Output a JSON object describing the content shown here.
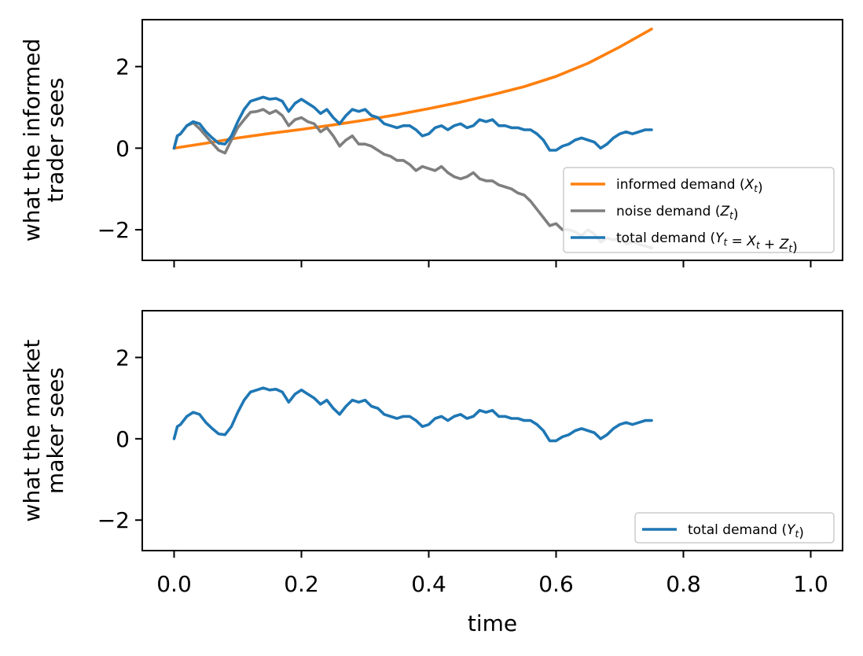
{
  "chart_data": [
    {
      "type": "line",
      "ylabel": [
        "what the informed",
        "trader sees"
      ],
      "xlabel": "",
      "xlim": [
        -0.05,
        1.05
      ],
      "ylim": [
        -2.75,
        3.15
      ],
      "xticks": [
        0.0,
        0.2,
        0.4,
        0.6,
        0.8,
        1.0
      ],
      "yticks": [
        -2,
        0,
        2
      ],
      "ytick_labels": [
        "−2",
        "0",
        "2"
      ],
      "show_xtick_labels": false,
      "grid": false,
      "legend_position": "lower-right",
      "series": [
        {
          "name": "informed demand",
          "legend_sub": "X",
          "legend_parts": [
            "informed demand (",
            ")"
          ],
          "color": "#ff7f0e",
          "x": [
            0.0,
            0.05,
            0.1,
            0.15,
            0.2,
            0.25,
            0.3,
            0.35,
            0.4,
            0.45,
            0.5,
            0.55,
            0.6,
            0.65,
            0.7,
            0.75
          ],
          "y": [
            0.0,
            0.12,
            0.25,
            0.36,
            0.46,
            0.57,
            0.69,
            0.82,
            0.97,
            1.13,
            1.31,
            1.51,
            1.76,
            2.08,
            2.48,
            2.92
          ]
        },
        {
          "name": "noise demand",
          "legend_sub": "Z",
          "legend_parts": [
            "noise demand (",
            ")"
          ],
          "color": "#7f7f7f",
          "x": [
            0.0,
            0.005,
            0.01,
            0.02,
            0.03,
            0.04,
            0.05,
            0.06,
            0.07,
            0.08,
            0.09,
            0.1,
            0.11,
            0.12,
            0.13,
            0.14,
            0.15,
            0.16,
            0.17,
            0.18,
            0.19,
            0.2,
            0.21,
            0.22,
            0.23,
            0.24,
            0.25,
            0.26,
            0.27,
            0.28,
            0.29,
            0.3,
            0.31,
            0.32,
            0.33,
            0.34,
            0.35,
            0.36,
            0.37,
            0.38,
            0.39,
            0.4,
            0.41,
            0.42,
            0.43,
            0.44,
            0.45,
            0.46,
            0.47,
            0.48,
            0.49,
            0.5,
            0.51,
            0.52,
            0.53,
            0.54,
            0.55,
            0.56,
            0.57,
            0.58,
            0.59,
            0.6,
            0.61,
            0.62,
            0.63,
            0.64,
            0.65,
            0.66,
            0.67,
            0.68,
            0.69,
            0.7,
            0.71,
            0.72,
            0.73,
            0.74,
            0.75
          ],
          "y": [
            0.0,
            0.3,
            0.35,
            0.55,
            0.62,
            0.48,
            0.3,
            0.12,
            -0.05,
            -0.12,
            0.2,
            0.5,
            0.7,
            0.88,
            0.9,
            0.95,
            0.85,
            0.92,
            0.8,
            0.55,
            0.7,
            0.75,
            0.65,
            0.6,
            0.4,
            0.5,
            0.3,
            0.05,
            0.2,
            0.3,
            0.1,
            0.1,
            0.05,
            -0.05,
            -0.15,
            -0.2,
            -0.3,
            -0.3,
            -0.4,
            -0.55,
            -0.45,
            -0.5,
            -0.55,
            -0.45,
            -0.6,
            -0.7,
            -0.75,
            -0.7,
            -0.6,
            -0.75,
            -0.8,
            -0.8,
            -0.9,
            -0.95,
            -1.0,
            -1.1,
            -1.15,
            -1.3,
            -1.5,
            -1.7,
            -1.9,
            -1.85,
            -2.0,
            -2.0,
            -2.05,
            -2.15,
            -2.0,
            -2.1,
            -2.3,
            -2.2,
            -2.25,
            -2.2,
            -2.35,
            -2.3,
            -2.35,
            -2.4,
            -2.45
          ]
        },
        {
          "name": "total demand",
          "legend_sub": "Y",
          "legend_parts": [
            "total demand (",
            " = ",
            " + ",
            ")"
          ],
          "legend_subs": [
            "Y",
            "X",
            "Z"
          ],
          "color": "#1f77b4",
          "x": [
            0.0,
            0.005,
            0.01,
            0.02,
            0.03,
            0.04,
            0.05,
            0.06,
            0.07,
            0.08,
            0.09,
            0.1,
            0.11,
            0.12,
            0.13,
            0.14,
            0.15,
            0.16,
            0.17,
            0.18,
            0.19,
            0.2,
            0.21,
            0.22,
            0.23,
            0.24,
            0.25,
            0.26,
            0.27,
            0.28,
            0.29,
            0.3,
            0.31,
            0.32,
            0.33,
            0.34,
            0.35,
            0.36,
            0.37,
            0.38,
            0.39,
            0.4,
            0.41,
            0.42,
            0.43,
            0.44,
            0.45,
            0.46,
            0.47,
            0.48,
            0.49,
            0.5,
            0.51,
            0.52,
            0.53,
            0.54,
            0.55,
            0.56,
            0.57,
            0.58,
            0.59,
            0.6,
            0.61,
            0.62,
            0.63,
            0.64,
            0.65,
            0.66,
            0.67,
            0.68,
            0.69,
            0.7,
            0.71,
            0.72,
            0.73,
            0.74,
            0.75
          ],
          "y": [
            0.0,
            0.3,
            0.35,
            0.55,
            0.65,
            0.6,
            0.4,
            0.25,
            0.12,
            0.1,
            0.3,
            0.65,
            0.95,
            1.15,
            1.2,
            1.25,
            1.2,
            1.22,
            1.15,
            0.9,
            1.1,
            1.2,
            1.1,
            1.0,
            0.85,
            0.95,
            0.75,
            0.6,
            0.8,
            0.95,
            0.9,
            0.95,
            0.8,
            0.75,
            0.6,
            0.55,
            0.5,
            0.55,
            0.55,
            0.45,
            0.3,
            0.35,
            0.5,
            0.55,
            0.45,
            0.55,
            0.6,
            0.5,
            0.55,
            0.7,
            0.65,
            0.7,
            0.55,
            0.55,
            0.5,
            0.5,
            0.45,
            0.45,
            0.35,
            0.2,
            -0.05,
            -0.05,
            0.05,
            0.1,
            0.2,
            0.25,
            0.2,
            0.15,
            0.0,
            0.1,
            0.25,
            0.35,
            0.4,
            0.35,
            0.4,
            0.45,
            0.45
          ]
        }
      ]
    },
    {
      "type": "line",
      "ylabel": [
        "what the market",
        "maker sees"
      ],
      "xlabel": "time",
      "xlim": [
        -0.05,
        1.05
      ],
      "ylim": [
        -2.75,
        3.15
      ],
      "xticks": [
        0.0,
        0.2,
        0.4,
        0.6,
        0.8,
        1.0
      ],
      "xtick_labels": [
        "0.0",
        "0.2",
        "0.4",
        "0.6",
        "0.8",
        "1.0"
      ],
      "yticks": [
        -2,
        0,
        2
      ],
      "ytick_labels": [
        "−2",
        "0",
        "2"
      ],
      "show_xtick_labels": true,
      "grid": false,
      "legend_position": "lower-right",
      "series": [
        {
          "name": "total demand",
          "legend_sub": "Y",
          "legend_parts": [
            "total demand (",
            ")"
          ],
          "color": "#1f77b4",
          "x": [
            0.0,
            0.005,
            0.01,
            0.02,
            0.03,
            0.04,
            0.05,
            0.06,
            0.07,
            0.08,
            0.09,
            0.1,
            0.11,
            0.12,
            0.13,
            0.14,
            0.15,
            0.16,
            0.17,
            0.18,
            0.19,
            0.2,
            0.21,
            0.22,
            0.23,
            0.24,
            0.25,
            0.26,
            0.27,
            0.28,
            0.29,
            0.3,
            0.31,
            0.32,
            0.33,
            0.34,
            0.35,
            0.36,
            0.37,
            0.38,
            0.39,
            0.4,
            0.41,
            0.42,
            0.43,
            0.44,
            0.45,
            0.46,
            0.47,
            0.48,
            0.49,
            0.5,
            0.51,
            0.52,
            0.53,
            0.54,
            0.55,
            0.56,
            0.57,
            0.58,
            0.59,
            0.6,
            0.61,
            0.62,
            0.63,
            0.64,
            0.65,
            0.66,
            0.67,
            0.68,
            0.69,
            0.7,
            0.71,
            0.72,
            0.73,
            0.74,
            0.75
          ],
          "y": [
            0.0,
            0.3,
            0.35,
            0.55,
            0.65,
            0.6,
            0.4,
            0.25,
            0.12,
            0.1,
            0.3,
            0.65,
            0.95,
            1.15,
            1.2,
            1.25,
            1.2,
            1.22,
            1.15,
            0.9,
            1.1,
            1.2,
            1.1,
            1.0,
            0.85,
            0.95,
            0.75,
            0.6,
            0.8,
            0.95,
            0.9,
            0.95,
            0.8,
            0.75,
            0.6,
            0.55,
            0.5,
            0.55,
            0.55,
            0.45,
            0.3,
            0.35,
            0.5,
            0.55,
            0.45,
            0.55,
            0.6,
            0.5,
            0.55,
            0.7,
            0.65,
            0.7,
            0.55,
            0.55,
            0.5,
            0.5,
            0.45,
            0.45,
            0.35,
            0.2,
            -0.05,
            -0.05,
            0.05,
            0.1,
            0.2,
            0.25,
            0.2,
            0.15,
            0.0,
            0.1,
            0.25,
            0.35,
            0.4,
            0.35,
            0.4,
            0.45,
            0.45
          ]
        }
      ]
    }
  ]
}
